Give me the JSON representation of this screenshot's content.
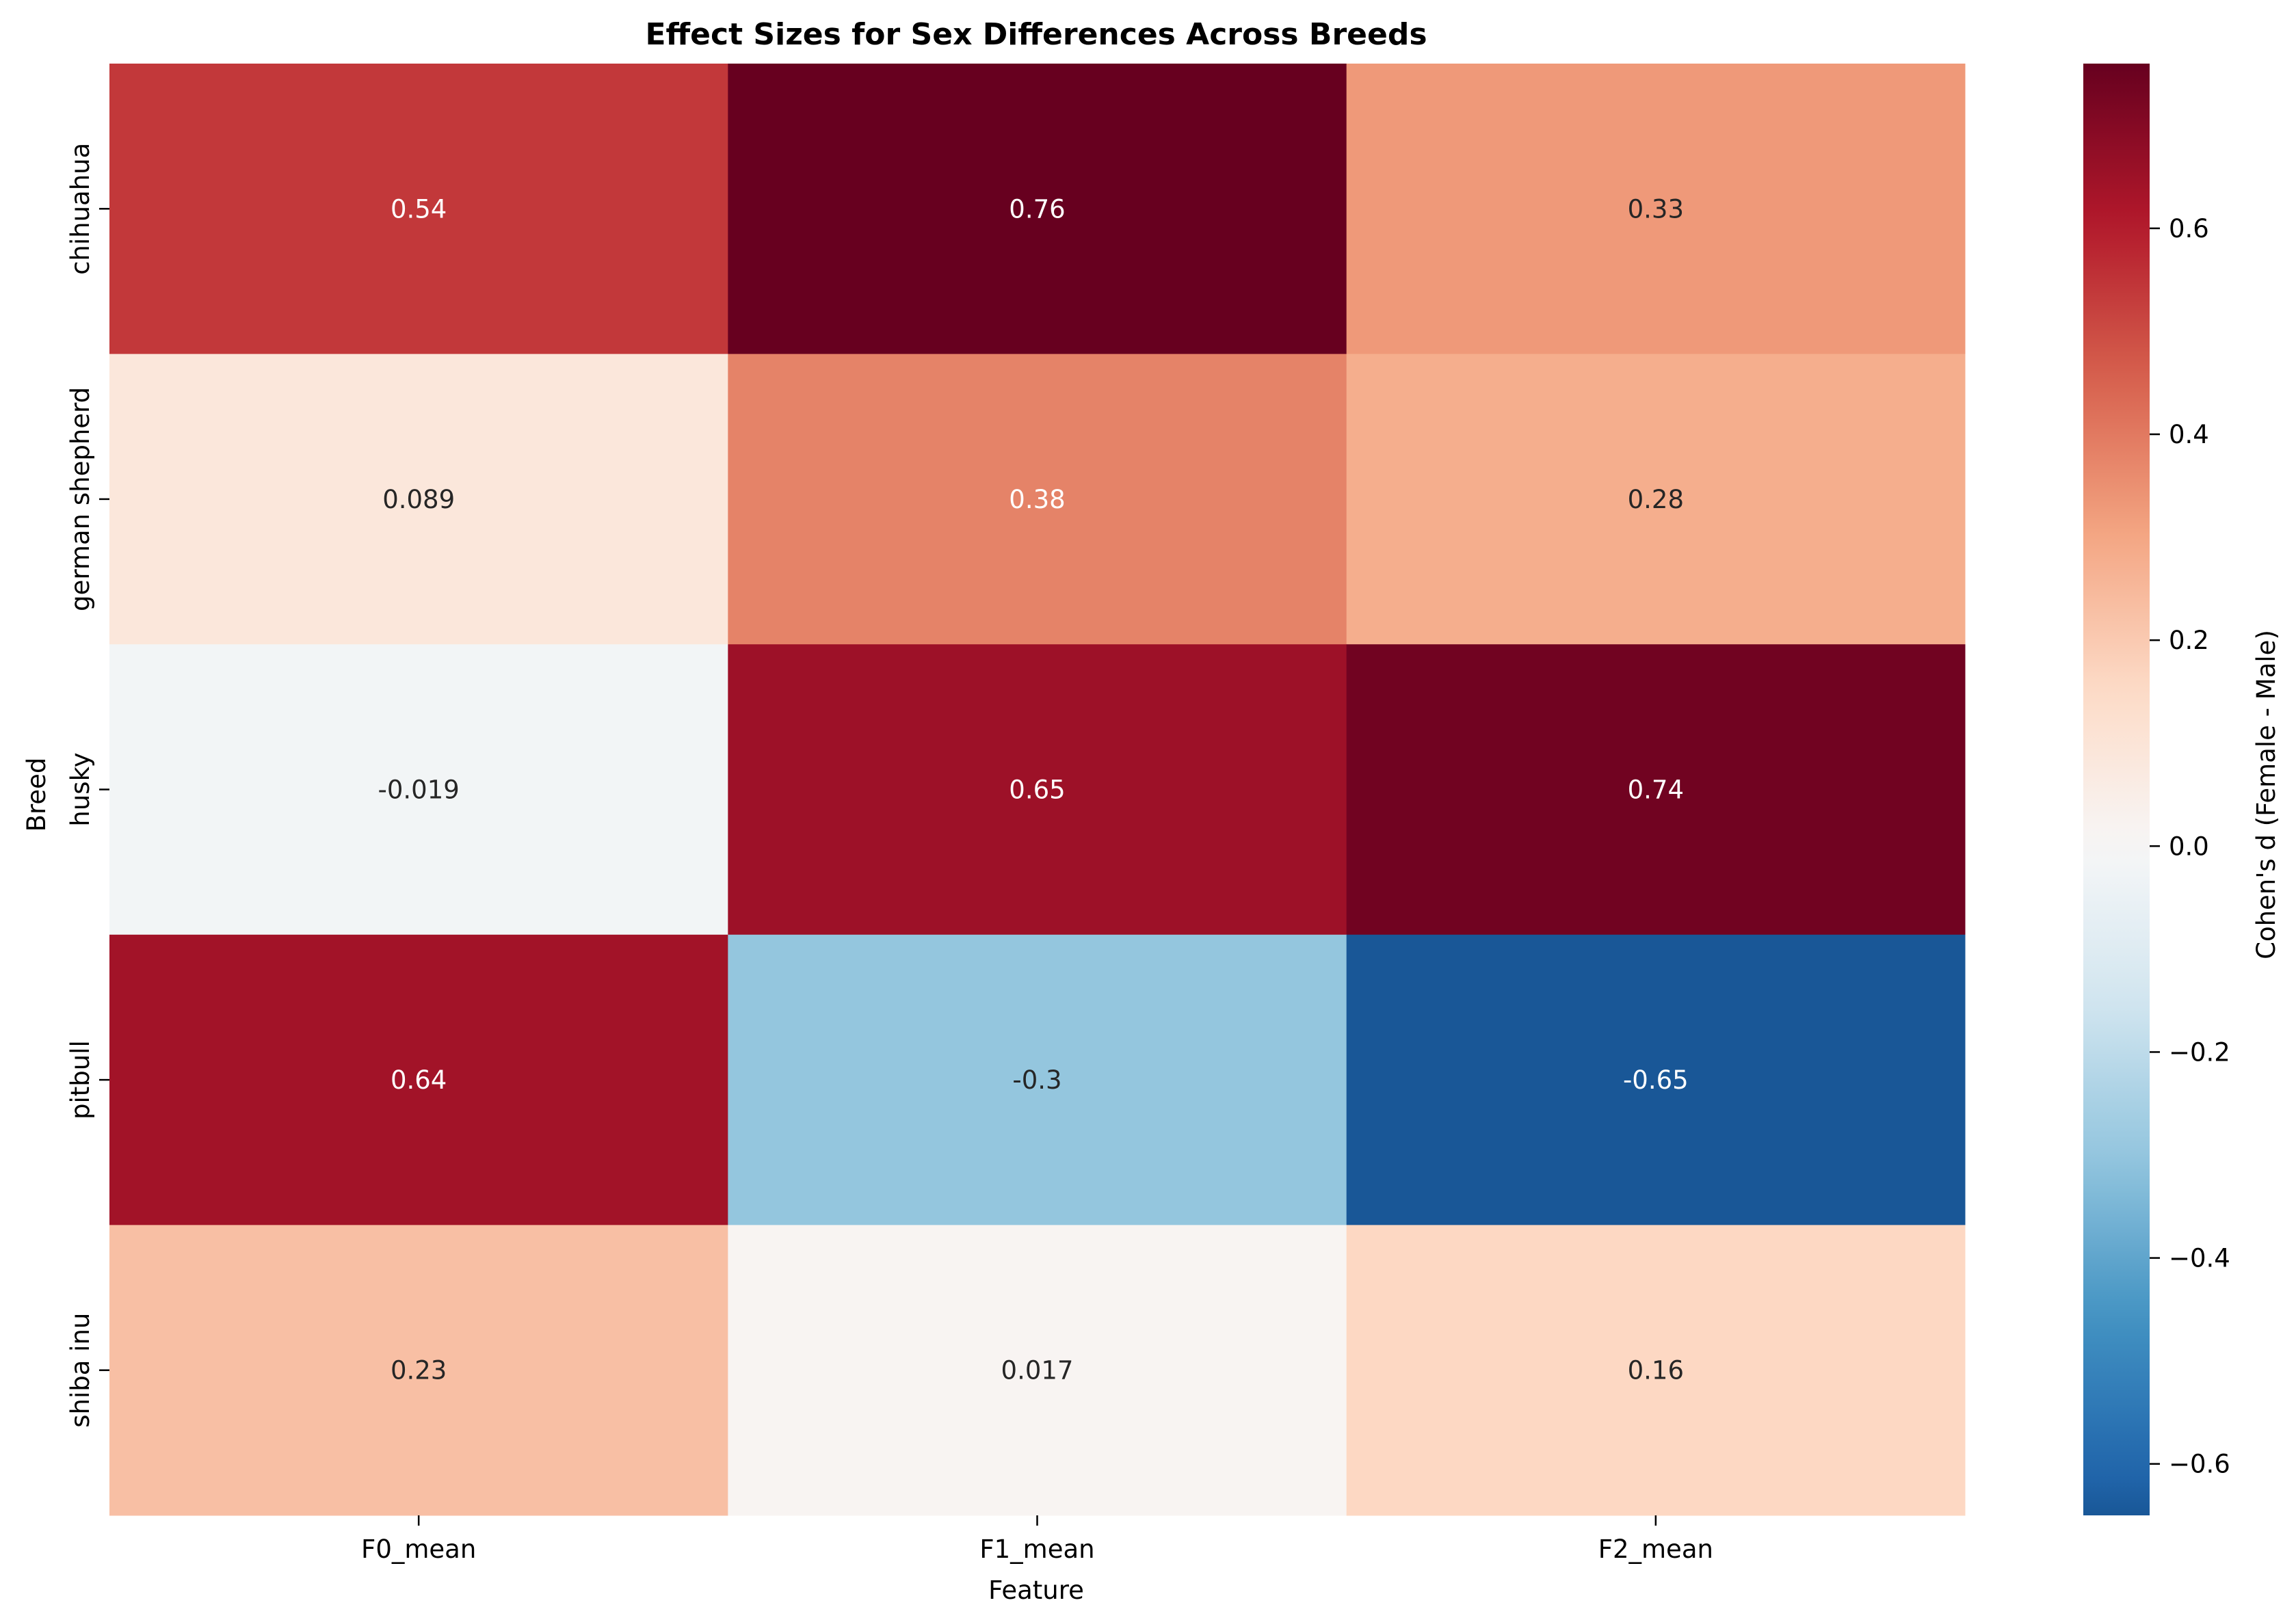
{
  "chart_data": {
    "type": "heatmap",
    "title": "Effect Sizes for Sex Differences Across Breeds",
    "xlabel": "Feature",
    "ylabel": "Breed",
    "x_categories": [
      "F0_mean",
      "F1_mean",
      "F2_mean"
    ],
    "y_categories": [
      "chihuahua",
      "german shepherd",
      "husky",
      "pitbull",
      "shiba inu"
    ],
    "values": [
      [
        0.54,
        0.76,
        0.33
      ],
      [
        0.089,
        0.38,
        0.28
      ],
      [
        -0.019,
        0.65,
        0.74
      ],
      [
        0.64,
        -0.3,
        -0.65
      ],
      [
        0.23,
        0.017,
        0.16
      ]
    ],
    "value_labels": [
      [
        "0.54",
        "0.76",
        "0.33"
      ],
      [
        "0.089",
        "0.38",
        "0.28"
      ],
      [
        "-0.019",
        "0.65",
        "0.74"
      ],
      [
        "0.64",
        "-0.3",
        "-0.65"
      ],
      [
        "0.23",
        "0.017",
        "0.16"
      ]
    ],
    "colormap": "RdBu_r",
    "vmin": -0.65,
    "vmax": 0.76,
    "colorbar_label": "Cohen's d (Female - Male)",
    "colorbar_ticks": [
      0.6,
      0.4,
      0.2,
      0.0,
      -0.2,
      -0.4,
      -0.6
    ],
    "colorbar_tick_labels": [
      "0.6",
      "0.4",
      "0.2",
      "0.0",
      "−0.2",
      "−0.4",
      "−0.6"
    ],
    "grid": false,
    "legend": "colorbar-right"
  }
}
